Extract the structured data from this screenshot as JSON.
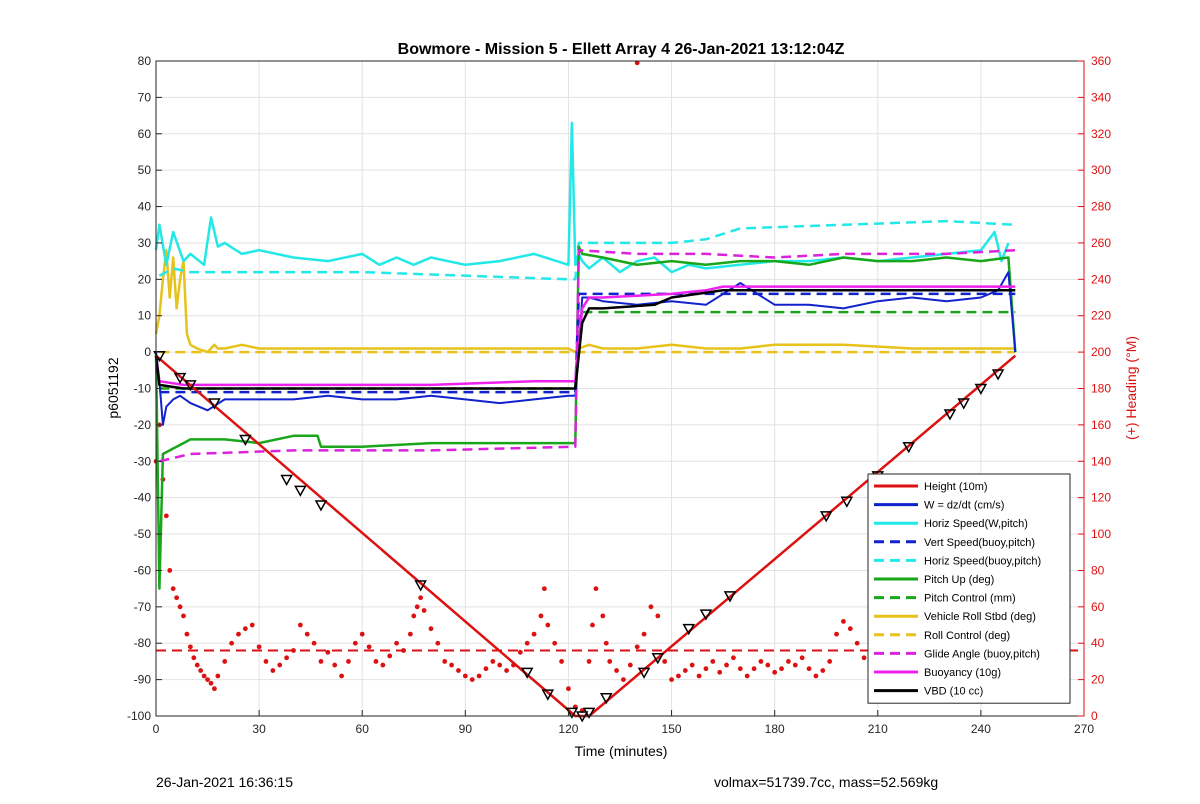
{
  "footer": {
    "timestamp": "26-Jan-2021 16:36:15",
    "stats": "volmax=51739.7cc, mass=52.569kg"
  },
  "chart_data": {
    "type": "line",
    "title": "Bowmore - Mission 5 - Ellett Array 4 26-Jan-2021 13:12:04Z",
    "xlabel": "Time (minutes)",
    "ylabel": "p6051192",
    "y2label": "(+) Heading (°M)",
    "xlim": [
      0,
      270
    ],
    "ylim": [
      -100,
      80
    ],
    "y2lim": [
      0,
      360
    ],
    "xticks": [
      0,
      30,
      60,
      90,
      120,
      150,
      180,
      210,
      240,
      270
    ],
    "yticks": [
      -100,
      -90,
      -80,
      -70,
      -60,
      -50,
      -40,
      -30,
      -20,
      -10,
      0,
      10,
      20,
      30,
      40,
      50,
      60,
      70,
      80
    ],
    "y2ticks": [
      0,
      20,
      40,
      60,
      80,
      100,
      120,
      140,
      160,
      180,
      200,
      220,
      240,
      260,
      280,
      300,
      320,
      340,
      360
    ],
    "grid": true,
    "legend_position": "bottom-right",
    "series": [
      {
        "name": "Height (10m)",
        "color": "#dd1111",
        "style": "solid",
        "width": 2.5,
        "x": [
          0,
          122,
          124,
          126,
          250
        ],
        "y": [
          -1,
          -100,
          -100,
          -100,
          -1
        ]
      },
      {
        "name": "W = dz/dt (cm/s)",
        "color": "#1122cc",
        "style": "solid",
        "width": 2,
        "x": [
          0,
          1,
          2,
          3,
          5,
          7,
          10,
          15,
          20,
          30,
          40,
          50,
          60,
          70,
          80,
          90,
          100,
          110,
          120,
          122,
          123,
          124,
          126,
          130,
          140,
          150,
          160,
          170,
          180,
          190,
          200,
          210,
          220,
          230,
          240,
          245,
          248,
          250
        ],
        "y": [
          0,
          -8,
          -20,
          -15,
          -13,
          -12,
          -14,
          -16,
          -13,
          -13,
          -13,
          -12,
          -13,
          -13,
          -12,
          -13,
          -14,
          -13,
          -12,
          -12,
          0,
          15,
          15,
          14,
          13,
          14,
          13,
          19,
          13,
          13,
          12,
          14,
          15,
          14,
          15,
          17,
          22,
          0
        ]
      },
      {
        "name": "Horiz Speed(W,pitch)",
        "color": "#22e8e8",
        "style": "solid",
        "width": 2.5,
        "x": [
          0,
          1,
          3,
          5,
          8,
          10,
          14,
          16,
          18,
          20,
          25,
          30,
          40,
          50,
          60,
          65,
          70,
          75,
          80,
          90,
          100,
          110,
          120,
          121,
          122,
          123,
          124,
          126,
          130,
          135,
          140,
          145,
          150,
          155,
          160,
          170,
          180,
          190,
          200,
          210,
          220,
          230,
          240,
          244,
          246,
          248
        ],
        "y": [
          28,
          35,
          24,
          33,
          25,
          27,
          24,
          37,
          29,
          30,
          27,
          28,
          26,
          25,
          27,
          24,
          26,
          24,
          26,
          24,
          25,
          27,
          24,
          63,
          24,
          27,
          25,
          23,
          26,
          22,
          25,
          26,
          22,
          24,
          23,
          24,
          25,
          25,
          26,
          25,
          26,
          27,
          28,
          33,
          25,
          30
        ]
      },
      {
        "name": "Vert Speed(buoy,pitch)",
        "color": "#1122cc",
        "style": "dashed",
        "width": 2.5,
        "x": [
          1,
          122,
          123,
          250
        ],
        "y": [
          -11,
          -11,
          16,
          16
        ]
      },
      {
        "name": "Horiz Speed(buoy,pitch)",
        "color": "#22e8e8",
        "style": "dashed",
        "width": 2.5,
        "x": [
          1,
          5,
          10,
          60,
          120,
          122,
          123,
          150,
          160,
          170,
          200,
          230,
          250
        ],
        "y": [
          21,
          23,
          22,
          22,
          20,
          20,
          30,
          30,
          31,
          34,
          35,
          36,
          35
        ]
      },
      {
        "name": "Pitch Up (deg)",
        "color": "#1aa61a",
        "style": "solid",
        "width": 2.5,
        "x": [
          0,
          1,
          2,
          4,
          8,
          10,
          20,
          30,
          40,
          47,
          48,
          60,
          80,
          100,
          122,
          123,
          124,
          130,
          140,
          150,
          160,
          170,
          180,
          190,
          200,
          210,
          220,
          230,
          240,
          248,
          250
        ],
        "y": [
          0,
          -65,
          -28,
          -27,
          -25,
          -24,
          -24,
          -25,
          -23,
          -23,
          -26,
          -26,
          -25,
          -25,
          -25,
          29,
          27,
          26,
          24,
          25,
          24,
          25,
          25,
          24,
          26,
          25,
          25,
          26,
          25,
          26,
          0
        ]
      },
      {
        "name": "Pitch Control (mm)",
        "color": "#1aa61a",
        "style": "dashed",
        "width": 2.5,
        "x": [
          1,
          122,
          123,
          250
        ],
        "y": [
          -10,
          -10,
          11,
          11
        ]
      },
      {
        "name": "Vehicle Roll Stbd (deg)",
        "color": "#e6c21a",
        "style": "solid",
        "width": 2.5,
        "x": [
          0,
          1,
          2,
          3,
          4,
          5,
          6,
          7,
          8,
          9,
          10,
          12,
          15,
          17,
          18,
          20,
          25,
          30,
          40,
          60,
          80,
          100,
          120,
          122,
          123,
          126,
          130,
          140,
          150,
          160,
          170,
          180,
          200,
          220,
          240,
          250
        ],
        "y": [
          5,
          10,
          20,
          28,
          15,
          26,
          12,
          20,
          25,
          5,
          2,
          1,
          0,
          2,
          1,
          1,
          2,
          1,
          1,
          1,
          1,
          1,
          1,
          0,
          1,
          2,
          1,
          1,
          2,
          1,
          1,
          2,
          2,
          1,
          1,
          1
        ]
      },
      {
        "name": "Roll Control (deg)",
        "color": "#e6c21a",
        "style": "dashed",
        "width": 2.5,
        "x": [
          1,
          122,
          123,
          250
        ],
        "y": [
          0,
          0,
          0,
          0
        ]
      },
      {
        "name": "Glide Angle (buoy,pitch)",
        "color": "#dd22dd",
        "style": "dashed",
        "width": 2.5,
        "x": [
          1,
          10,
          40,
          80,
          122,
          123,
          140,
          160,
          180,
          200,
          230,
          250
        ],
        "y": [
          -30,
          -28,
          -27,
          -27,
          -26,
          28,
          27,
          27,
          26,
          27,
          27,
          28
        ]
      },
      {
        "name": "Buoyancy (10g)",
        "color": "#ee22ee",
        "style": "solid",
        "width": 2.5,
        "x": [
          0,
          1,
          8,
          40,
          80,
          110,
          122,
          124,
          126,
          130,
          150,
          160,
          165,
          250
        ],
        "y": [
          -1,
          -8,
          -9,
          -9,
          -9,
          -8,
          -8,
          12,
          15,
          15,
          16,
          17,
          18,
          18
        ]
      },
      {
        "name": "VBD (10 cc)",
        "color": "#000000",
        "style": "solid",
        "width": 2.5,
        "x": [
          0,
          1,
          8,
          40,
          80,
          110,
          122,
          124,
          126,
          130,
          145,
          150,
          165,
          200,
          250
        ],
        "y": [
          -1,
          -9,
          -10,
          -10,
          -10,
          -10,
          -10,
          8,
          12,
          12,
          13,
          15,
          17,
          17,
          17
        ]
      }
    ],
    "heading_dashed": {
      "color": "#dd1111",
      "y2": 36
    },
    "heading_points": {
      "color": "#dd1111",
      "x": [
        0,
        1,
        2,
        3,
        4,
        5,
        6,
        7,
        8,
        9,
        10,
        11,
        12,
        13,
        14,
        15,
        16,
        17,
        18,
        20,
        22,
        24,
        26,
        28,
        30,
        32,
        34,
        36,
        38,
        40,
        42,
        44,
        46,
        48,
        50,
        52,
        54,
        56,
        58,
        60,
        62,
        64,
        66,
        68,
        70,
        72,
        74,
        75,
        76,
        77,
        78,
        80,
        82,
        84,
        86,
        88,
        90,
        92,
        94,
        96,
        98,
        100,
        102,
        104,
        106,
        108,
        110,
        112,
        113,
        114,
        116,
        118,
        120,
        122,
        124,
        126,
        127,
        128,
        130,
        131,
        132,
        134,
        136,
        138,
        140,
        142,
        144,
        146,
        148,
        150,
        152,
        154,
        156,
        158,
        160,
        162,
        164,
        166,
        168,
        170,
        172,
        174,
        176,
        178,
        180,
        182,
        184,
        186,
        188,
        190,
        192,
        194,
        196,
        198,
        200,
        202,
        204,
        206,
        208,
        210,
        212,
        214,
        216,
        218,
        220,
        222,
        224,
        226,
        228,
        230,
        232,
        234,
        236,
        238,
        240,
        242,
        244,
        246,
        248,
        250,
        140
      ],
      "y2": [
        140,
        160,
        130,
        110,
        80,
        70,
        65,
        60,
        55,
        45,
        38,
        32,
        28,
        25,
        22,
        20,
        18,
        15,
        22,
        30,
        40,
        45,
        48,
        50,
        38,
        30,
        25,
        28,
        32,
        36,
        50,
        45,
        40,
        30,
        35,
        28,
        22,
        30,
        40,
        45,
        38,
        30,
        28,
        33,
        40,
        36,
        45,
        55,
        60,
        65,
        58,
        48,
        40,
        30,
        28,
        25,
        22,
        20,
        22,
        26,
        30,
        28,
        25,
        28,
        35,
        40,
        45,
        55,
        70,
        50,
        40,
        30,
        15,
        5,
        3,
        30,
        50,
        70,
        55,
        40,
        30,
        25,
        20,
        28,
        38,
        45,
        60,
        55,
        30,
        20,
        22,
        25,
        28,
        22,
        26,
        30,
        24,
        28,
        32,
        26,
        22,
        26,
        30,
        28,
        24,
        26,
        30,
        28,
        32,
        26,
        22,
        25,
        30,
        45,
        52,
        48,
        40,
        32,
        28,
        35,
        40,
        38,
        30,
        28,
        32,
        38,
        42,
        36,
        30,
        28,
        26,
        40,
        48,
        44,
        38,
        52,
        60,
        48,
        55,
        62,
        359
      ]
    },
    "markers": {
      "shape": "triangle-down",
      "color": "#000000",
      "x": [
        1,
        7,
        10,
        17,
        26,
        38,
        42,
        48,
        77,
        108,
        114,
        121,
        124,
        126,
        131,
        142,
        146,
        155,
        160,
        167,
        195,
        201,
        210,
        219,
        231,
        235,
        240,
        245
      ],
      "y": [
        -1,
        -7,
        -9,
        -14,
        -24,
        -35,
        -38,
        -42,
        -64,
        -88,
        -94,
        -99,
        -100,
        -99,
        -95,
        -88,
        -84,
        -76,
        -72,
        -67,
        -45,
        -41,
        -34,
        -26,
        -17,
        -14,
        -10,
        -6
      ]
    }
  }
}
